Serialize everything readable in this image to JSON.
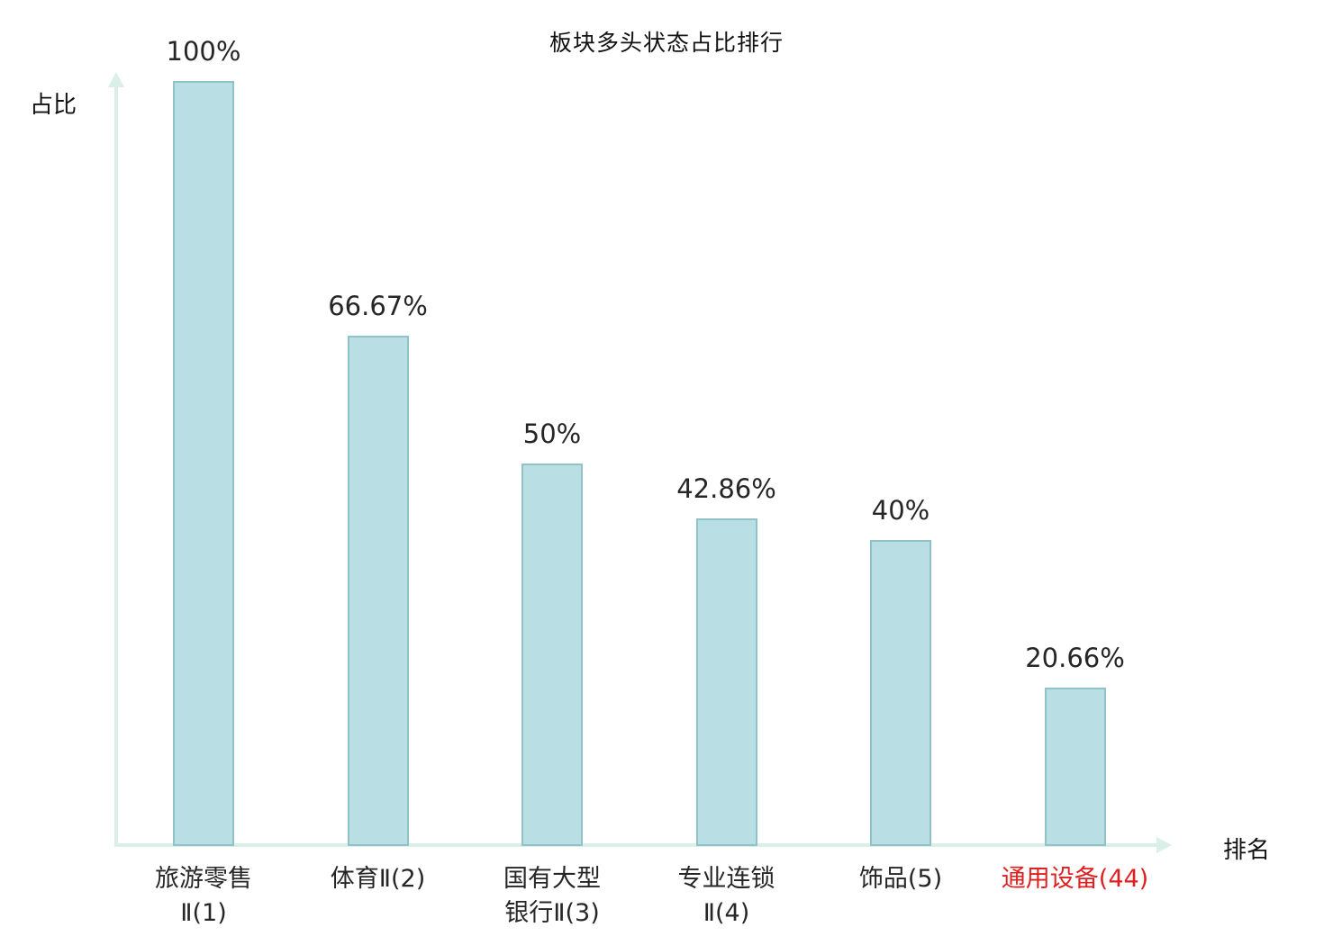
{
  "chart_data": {
    "type": "bar",
    "title": "板块多头状态占比排行",
    "xlabel": "排名",
    "ylabel": "占比",
    "categories": [
      "旅游零售\nⅡ(1)",
      "体育Ⅱ(2)",
      "国有大型\n银行Ⅱ(3)",
      "专业连锁\nⅡ(4)",
      "饰品(5)",
      "通用设备(44)"
    ],
    "values": [
      100,
      66.67,
      50,
      42.86,
      40,
      20.66
    ],
    "value_labels": [
      "100%",
      "66.67%",
      "50%",
      "42.86%",
      "40%",
      "20.66%"
    ],
    "ylim": [
      0,
      100
    ],
    "grid": false,
    "legend": "none",
    "bar_color": "#b9dfe4",
    "bar_border_color": "#8fc2c9",
    "axis_color": "#d9efe7",
    "text_color": "#262626",
    "highlight_index": 5,
    "highlight_color": "#e02020"
  }
}
